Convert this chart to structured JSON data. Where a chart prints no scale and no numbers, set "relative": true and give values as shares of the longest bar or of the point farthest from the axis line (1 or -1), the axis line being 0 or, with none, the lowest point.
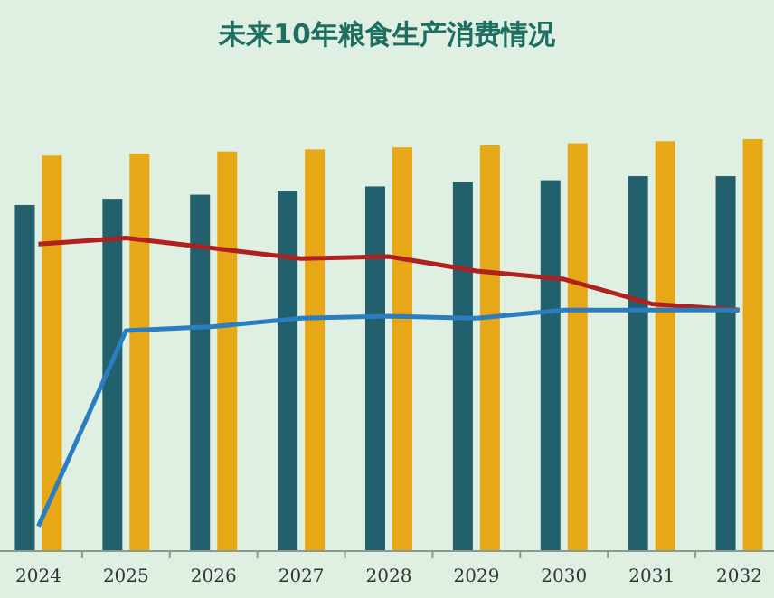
{
  "chart_data": {
    "type": "bar",
    "title": "未来10年粮食生产消费情况",
    "relative": true,
    "marker": "none",
    "categories": [
      "2024",
      "2025",
      "2026",
      "2027",
      "2028",
      "2029",
      "2030",
      "2031",
      "2032"
    ],
    "series": [
      {
        "color": "#22606e",
        "values": [
          0.84,
          0.855,
          0.865,
          0.875,
          0.885,
          0.895,
          0.9,
          0.91,
          0.91
        ]
      },
      {
        "type": "bar",
        "color": "#e6a817",
        "values": [
          0.96,
          0.965,
          0.97,
          0.975,
          0.98,
          0.985,
          0.99,
          0.995,
          1
        ]
      },
      {
        "type": "line",
        "color": "#b0201f",
        "values": [
          0.745,
          0.76,
          0.735,
          0.71,
          0.715,
          0.68,
          0.66,
          0.6,
          0.585
        ]
      },
      {
        "type": "line",
        "color": "#2a7dc0",
        "values": [
          0.06,
          0.535,
          0.545,
          0.565,
          0.57,
          0.565,
          0.585,
          0.585,
          0.585
        ]
      }
    ]
  }
}
